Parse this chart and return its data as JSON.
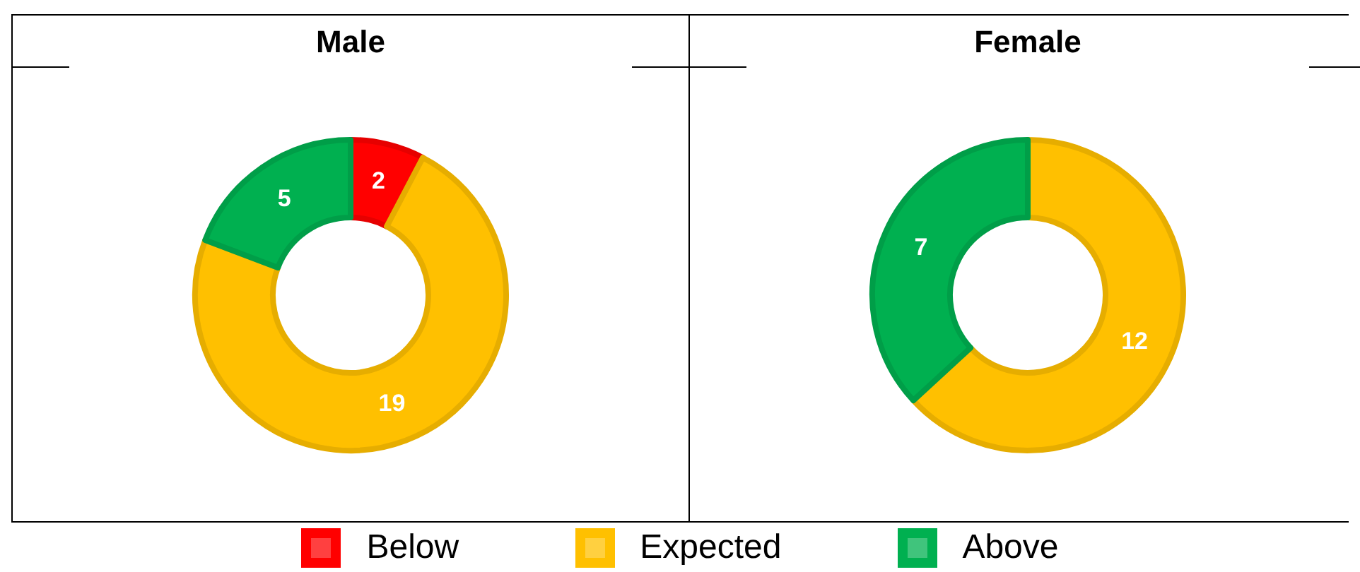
{
  "chart_data": [
    {
      "type": "donut",
      "title": "Male",
      "categories": [
        "Below",
        "Expected",
        "Above"
      ],
      "values": [
        2,
        19,
        5
      ],
      "colors": [
        "#ff0000",
        "#ffc000",
        "#00b050"
      ],
      "data_labels": true,
      "legend": "bottom"
    },
    {
      "type": "donut",
      "title": "Female",
      "categories": [
        null,
        null
      ],
      "values": [
        12,
        7
      ],
      "colors": [
        "#ffc000",
        "#00b050"
      ],
      "data_labels": true
    }
  ]
}
